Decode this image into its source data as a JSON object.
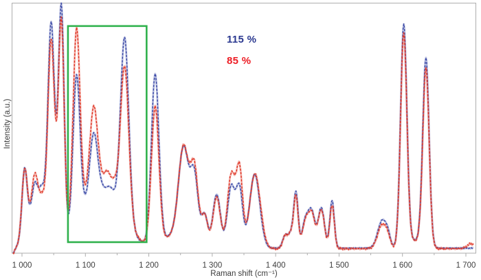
{
  "chart_data": {
    "type": "line",
    "title": "",
    "xlabel": "Raman shift (cm⁻¹)",
    "ylabel": "Intensity (a.u.)",
    "x_range": [
      986,
      1712
    ],
    "x_axis_ticks": [
      {
        "value": 1000,
        "label": "1 000"
      },
      {
        "value": 1100,
        "label": "1 100"
      },
      {
        "value": 1200,
        "label": "1 200"
      },
      {
        "value": 1300,
        "label": "1 300"
      },
      {
        "value": 1400,
        "label": "1 400"
      },
      {
        "value": 1500,
        "label": "1 500"
      },
      {
        "value": 1600,
        "label": "1 600"
      },
      {
        "value": 1700,
        "label": "1 700"
      }
    ],
    "x_minor_ticks": [
      1050,
      1150,
      1250,
      1350,
      1450,
      1550,
      1650
    ],
    "y_ticks": [],
    "grid": false,
    "intensity_scale": [
      0,
      100
    ],
    "legend": {
      "position": "upper-middle-left",
      "items": [
        {
          "label": "115 %",
          "color": "#2b3990"
        },
        {
          "label": "85 %",
          "color": "#ed1c24"
        }
      ]
    },
    "highlight_box": {
      "x_min": 1072.5,
      "x_max": 1196.5,
      "intensity_min": 4.4,
      "intensity_max": 90.7,
      "color": "#2fb14c",
      "stroke_width": 2.6
    },
    "frame_color": "#adadad",
    "tick_label_color": "#3d3d3d",
    "series": [
      {
        "name": "115 %",
        "color": "#3f4da8",
        "baseline": 2.0,
        "noise": 0.28,
        "peaks": [
          [
            982,
            -3.5,
            5
          ],
          [
            1004,
            25.5,
            4
          ],
          [
            1025,
            20,
            14
          ],
          [
            1020,
            7.3,
            4
          ],
          [
            1032,
            6,
            4
          ],
          [
            1046,
            82,
            5
          ],
          [
            1054,
            8,
            4
          ],
          [
            1062,
            93,
            4.5
          ],
          [
            1086,
            59,
            5.5
          ],
          [
            1113,
            24,
            6
          ],
          [
            1125,
            24,
            30
          ],
          [
            1140,
            3,
            5
          ],
          [
            1162,
            73,
            6.5
          ],
          [
            1210,
            68,
            6
          ],
          [
            1240,
            5,
            18
          ],
          [
            1255,
            37,
            8
          ],
          [
            1272,
            27,
            6
          ],
          [
            1288,
            13,
            5
          ],
          [
            1307,
            21.5,
            6
          ],
          [
            1330,
            24.5,
            6
          ],
          [
            1343,
            23,
            5
          ],
          [
            1367,
            29.5,
            8
          ],
          [
            1415,
            5,
            4
          ],
          [
            1424,
            5.5,
            4
          ],
          [
            1432,
            22,
            3.5
          ],
          [
            1447,
            11,
            5
          ],
          [
            1457,
            14,
            5
          ],
          [
            1472,
            16,
            5
          ],
          [
            1489,
            19,
            3.5
          ],
          [
            1568,
            11,
            7
          ],
          [
            1577,
            3.5,
            4
          ],
          [
            1602,
            88.5,
            5
          ],
          [
            1620,
            3,
            12
          ],
          [
            1637,
            75,
            5
          ]
        ]
      },
      {
        "name": "85 %",
        "color": "#e03a2a",
        "baseline": 1.8,
        "noise": 0.55,
        "peaks": [
          [
            982,
            -3.5,
            5
          ],
          [
            1004,
            25.5,
            4.2
          ],
          [
            1025,
            20,
            14
          ],
          [
            1020,
            11.3,
            4
          ],
          [
            1032,
            3,
            4
          ],
          [
            1046,
            75.5,
            5
          ],
          [
            1054,
            8,
            4
          ],
          [
            1062,
            87,
            4.5
          ],
          [
            1086,
            76,
            5.5
          ],
          [
            1113,
            31,
            6
          ],
          [
            1125,
            28,
            30
          ],
          [
            1135,
            4.5,
            4
          ],
          [
            1145,
            4,
            4
          ],
          [
            1162,
            60,
            6.5
          ],
          [
            1210,
            55,
            6
          ],
          [
            1240,
            5,
            18
          ],
          [
            1255,
            37.5,
            8
          ],
          [
            1272,
            30,
            6
          ],
          [
            1288,
            13,
            5
          ],
          [
            1307,
            20.5,
            6
          ],
          [
            1330,
            29.5,
            6
          ],
          [
            1343,
            31,
            5
          ],
          [
            1367,
            29.5,
            8
          ],
          [
            1378,
            2.5,
            6
          ],
          [
            1415,
            5,
            4
          ],
          [
            1424,
            5.5,
            4
          ],
          [
            1432,
            20.5,
            3.5
          ],
          [
            1447,
            10.5,
            5
          ],
          [
            1457,
            13.5,
            5
          ],
          [
            1472,
            15.5,
            5
          ],
          [
            1489,
            17.5,
            3.5
          ],
          [
            1568,
            9.5,
            7
          ],
          [
            1577,
            3,
            4
          ],
          [
            1602,
            85,
            5
          ],
          [
            1620,
            3,
            12
          ],
          [
            1637,
            71,
            5
          ],
          [
            1708,
            2,
            6
          ]
        ]
      }
    ]
  }
}
